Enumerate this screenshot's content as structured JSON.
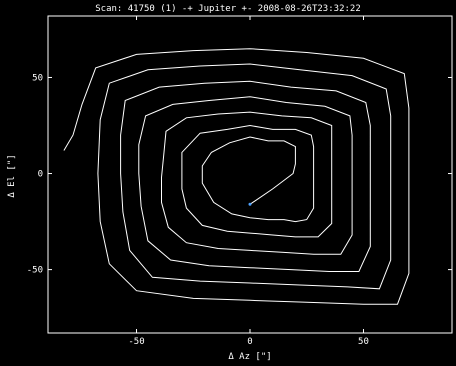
{
  "chart_data": {
    "type": "line",
    "title": "Scan: 41750 (1) -+ Jupiter +- 2008-08-26T23:32:22",
    "xlabel": "Δ Az [\"]",
    "ylabel": "Δ El [\"]",
    "xlim": [
      -89,
      89
    ],
    "ylim": [
      -83,
      82
    ],
    "xticks": [
      -50,
      0,
      50
    ],
    "yticks": [
      -50,
      0,
      50
    ],
    "grid": false,
    "colors": {
      "background": "#000000",
      "foreground": "#ffffff",
      "line": "#ffffff",
      "marker": "#4fa3ff"
    },
    "series": [
      {
        "type": "line",
        "points": [
          [
            0,
            -16
          ],
          [
            10,
            -8
          ],
          [
            19,
            0
          ],
          [
            20,
            5
          ],
          [
            20,
            14
          ],
          [
            15,
            17
          ],
          [
            8,
            17
          ],
          [
            0,
            19
          ],
          [
            -9,
            16
          ],
          [
            -17,
            11
          ],
          [
            -21,
            4
          ],
          [
            -21,
            -5
          ],
          [
            -16,
            -15
          ],
          [
            -8,
            -21
          ],
          [
            0,
            -23
          ],
          [
            8,
            -24
          ],
          [
            15,
            -24
          ],
          [
            20,
            -25
          ],
          [
            25,
            -24
          ],
          [
            28,
            -18
          ],
          [
            28,
            -8
          ],
          [
            28,
            5
          ],
          [
            28,
            14
          ],
          [
            27,
            20
          ],
          [
            20,
            23
          ],
          [
            10,
            23
          ],
          [
            0,
            25
          ],
          [
            -10,
            23
          ],
          [
            -22,
            21
          ],
          [
            -30,
            11
          ],
          [
            -30,
            2
          ],
          [
            -30,
            -8
          ],
          [
            -28,
            -18
          ],
          [
            -21,
            -27
          ],
          [
            -10,
            -30
          ],
          [
            0,
            -31
          ],
          [
            10,
            -32
          ],
          [
            20,
            -33
          ],
          [
            30,
            -33
          ],
          [
            36,
            -26
          ],
          [
            36,
            -12
          ],
          [
            36,
            3
          ],
          [
            36,
            16
          ],
          [
            36,
            25
          ],
          [
            27,
            29
          ],
          [
            14,
            30
          ],
          [
            0,
            32
          ],
          [
            -14,
            31
          ],
          [
            -28,
            29
          ],
          [
            -37,
            22
          ],
          [
            -38,
            10
          ],
          [
            -39,
            -2
          ],
          [
            -39,
            -15
          ],
          [
            -36,
            -28
          ],
          [
            -28,
            -36
          ],
          [
            -14,
            -39
          ],
          [
            0,
            -40
          ],
          [
            14,
            -41
          ],
          [
            28,
            -42
          ],
          [
            40,
            -42
          ],
          [
            45,
            -32
          ],
          [
            45,
            -15
          ],
          [
            45,
            5
          ],
          [
            45,
            20
          ],
          [
            44,
            30
          ],
          [
            33,
            35
          ],
          [
            16,
            37
          ],
          [
            0,
            40
          ],
          [
            -18,
            38
          ],
          [
            -34,
            36
          ],
          [
            -46,
            30
          ],
          [
            -49,
            15
          ],
          [
            -49,
            0
          ],
          [
            -48,
            -17
          ],
          [
            -45,
            -35
          ],
          [
            -35,
            -45
          ],
          [
            -18,
            -48
          ],
          [
            0,
            -49
          ],
          [
            18,
            -50
          ],
          [
            35,
            -51
          ],
          [
            48,
            -51
          ],
          [
            53,
            -38
          ],
          [
            53,
            -18
          ],
          [
            53,
            5
          ],
          [
            53,
            25
          ],
          [
            51,
            37
          ],
          [
            38,
            43
          ],
          [
            18,
            45
          ],
          [
            0,
            48
          ],
          [
            -20,
            47
          ],
          [
            -40,
            45
          ],
          [
            -55,
            38
          ],
          [
            -57,
            20
          ],
          [
            -57,
            0
          ],
          [
            -56,
            -20
          ],
          [
            -53,
            -40
          ],
          [
            -43,
            -54
          ],
          [
            -22,
            -56
          ],
          [
            0,
            -57
          ],
          [
            22,
            -58
          ],
          [
            43,
            -59
          ],
          [
            57,
            -60
          ],
          [
            62,
            -45
          ],
          [
            62,
            -20
          ],
          [
            62,
            5
          ],
          [
            62,
            30
          ],
          [
            60,
            44
          ],
          [
            45,
            51
          ],
          [
            22,
            54
          ],
          [
            0,
            57
          ],
          [
            -22,
            56
          ],
          [
            -45,
            54
          ],
          [
            -62,
            47
          ],
          [
            -66,
            28
          ],
          [
            -67,
            0
          ],
          [
            -66,
            -25
          ],
          [
            -62,
            -47
          ],
          [
            -50,
            -61
          ],
          [
            -25,
            -65
          ],
          [
            0,
            -66
          ],
          [
            25,
            -67
          ],
          [
            50,
            -68
          ],
          [
            65,
            -68
          ],
          [
            70,
            -52
          ],
          [
            70,
            -25
          ],
          [
            70,
            5
          ],
          [
            70,
            34
          ],
          [
            68,
            52
          ],
          [
            50,
            60
          ],
          [
            25,
            63
          ],
          [
            0,
            65
          ],
          [
            -25,
            64
          ],
          [
            -50,
            62
          ],
          [
            -68,
            55
          ],
          [
            -74,
            36
          ],
          [
            -78,
            20
          ],
          [
            -82,
            12
          ]
        ]
      }
    ],
    "marker": {
      "x": 0,
      "y": -16
    }
  }
}
